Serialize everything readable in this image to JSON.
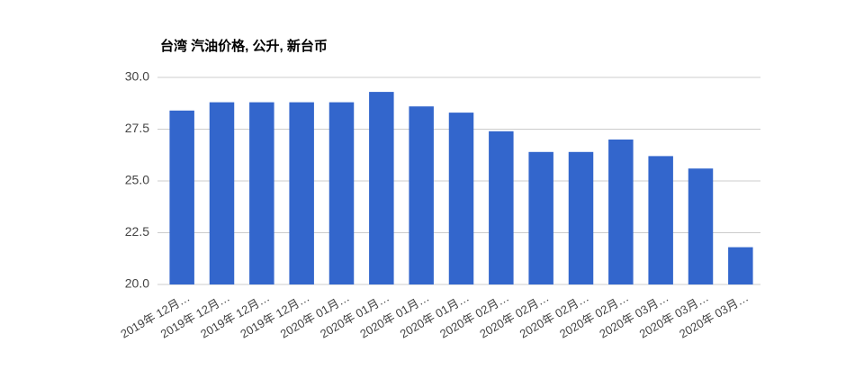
{
  "chart_data": {
    "type": "bar",
    "title": "台湾 汽油价格, 公升, 新台币",
    "categories": [
      "2019年 12月…",
      "2019年 12月…",
      "2019年 12月…",
      "2019年 12月…",
      "2020年 01月…",
      "2020年 01月…",
      "2020年 01月…",
      "2020年 01月…",
      "2020年 02月…",
      "2020年 02月…",
      "2020年 02月…",
      "2020年 02月…",
      "2020年 03月…",
      "2020年 03月…",
      "2020年 03月…"
    ],
    "values": [
      28.4,
      28.8,
      28.8,
      28.8,
      28.8,
      29.3,
      28.6,
      28.3,
      27.4,
      26.4,
      26.4,
      27.0,
      26.2,
      25.6,
      21.8
    ],
    "color": "#3366cc",
    "ylim": [
      20,
      30
    ],
    "yticks": [
      {
        "value": 20,
        "label": "20.0"
      },
      22.5,
      {
        "value": 25,
        "label": "25.0"
      },
      27.5,
      {
        "value": 30,
        "label": "30.0"
      }
    ],
    "grid": true
  }
}
